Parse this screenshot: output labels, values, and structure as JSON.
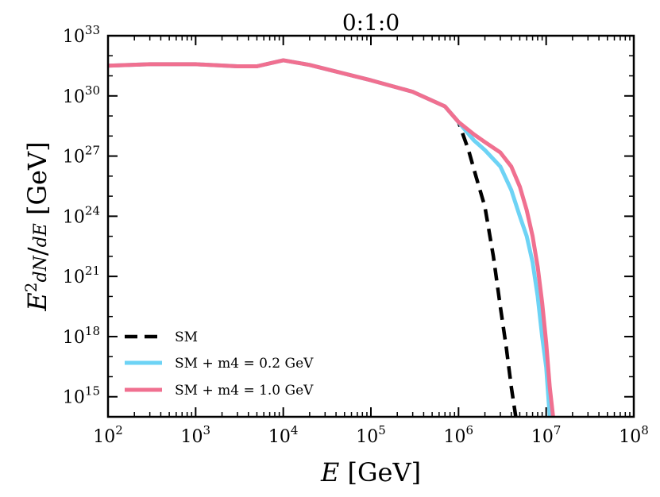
{
  "chart_data": {
    "type": "line",
    "title": "0:1:0",
    "xlabel": "E [GeV]",
    "ylabel": "E² dN/dE [GeV]",
    "xscale": "log",
    "yscale": "log",
    "xlim": [
      100,
      100000000
    ],
    "ylim": [
      100000000000000.0,
      1e+33
    ],
    "x_tick_labels": [
      "10^2",
      "10^3",
      "10^4",
      "10^5",
      "10^6",
      "10^7",
      "10^8"
    ],
    "y_tick_labels": [
      "10^15",
      "10^18",
      "10^21",
      "10^24",
      "10^27",
      "10^30",
      "10^33"
    ],
    "grid": false,
    "legend_position": "bottom-left",
    "series": [
      {
        "name": "SM",
        "style": "dashed",
        "color": "#000000",
        "x": [
          100,
          300,
          1000,
          3000,
          5000,
          10000,
          20000,
          100000,
          300000,
          700000,
          1000000,
          1300000,
          1600000,
          2000000,
          2500000,
          3000000,
          3500000,
          4000000,
          4500000
        ],
        "y": [
          3.2e+31,
          3.8e+31,
          3.8e+31,
          3e+31,
          3e+31,
          6e+31,
          3.5e+31,
          6e+30,
          1.6e+30,
          3e+29,
          5e+28,
          2e+27,
          8e+25,
          3e+24,
          1e+22,
          3e+19,
          3e+17,
          3000000000000000.0,
          100000000000000.0
        ]
      },
      {
        "name": "SM + m4 = 0.2 GeV",
        "style": "solid",
        "color": "#6dd3f5",
        "x": [
          100,
          300,
          1000,
          3000,
          5000,
          10000,
          20000,
          100000,
          300000,
          700000,
          1000000,
          1500000,
          2000000,
          3000000,
          4000000,
          5000000,
          6000000,
          7000000,
          8000000,
          9000000,
          10000000,
          11000000
        ],
        "y": [
          3.2e+31,
          3.8e+31,
          3.8e+31,
          3e+31,
          3e+31,
          6e+31,
          3.5e+31,
          6e+30,
          1.6e+30,
          3e+29,
          5e+28,
          6e+27,
          2e+27,
          3e+26,
          2e+25,
          1e+24,
          1e+23,
          5e+21,
          1e+20,
          1e+18,
          3e+16,
          100000000000000.0
        ]
      },
      {
        "name": "SM + m4 = 1.0 GeV",
        "style": "solid",
        "color": "#f07090",
        "x": [
          100,
          300,
          1000,
          3000,
          5000,
          10000,
          20000,
          100000,
          300000,
          700000,
          1000000,
          1500000,
          2000000,
          3000000,
          4000000,
          5000000,
          6000000,
          7000000,
          8000000,
          9000000,
          10000000,
          11000000,
          12000000
        ],
        "y": [
          3.2e+31,
          3.8e+31,
          3.8e+31,
          3e+31,
          3e+31,
          6e+31,
          3.5e+31,
          6e+30,
          1.6e+30,
          3e+29,
          5e+28,
          1.2e+28,
          5e+27,
          1.5e+27,
          3e+26,
          3e+25,
          2e+24,
          1e+23,
          3e+21,
          5e+19,
          5e+17,
          3000000000000000.0,
          100000000000000.0
        ]
      }
    ]
  }
}
